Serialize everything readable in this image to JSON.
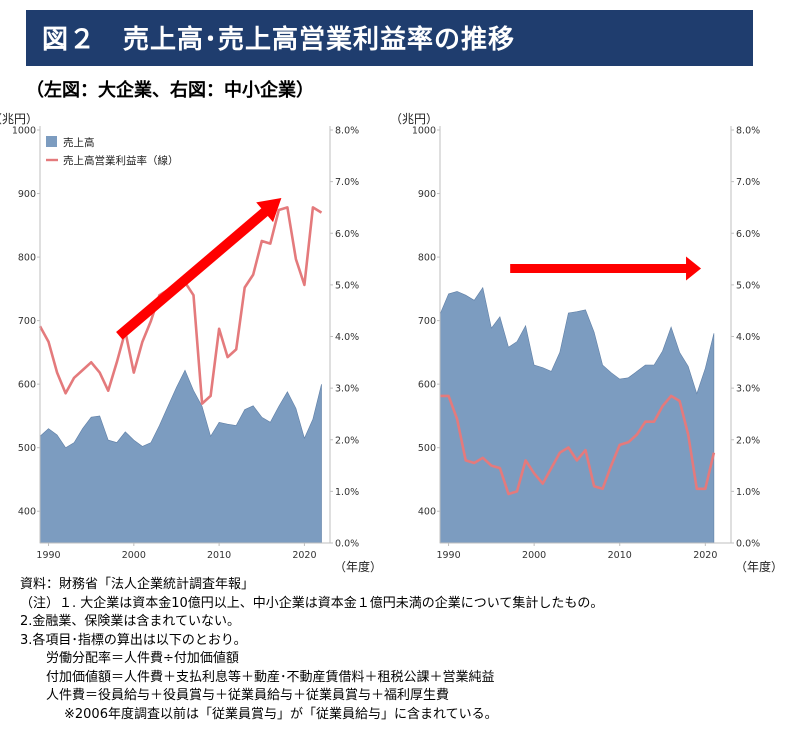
{
  "header": {
    "title": "図２　売上高･売上高営業利益率の推移",
    "subtitle": "（左図：大企業、右図：中小企業）"
  },
  "legend": {
    "sales": "売上高",
    "margin": "売上高営業利益率（線）"
  },
  "colors": {
    "title_bg": "#1f3d6e",
    "area": "#7c9cc0",
    "area_edge": "#5f7fa6",
    "line": "#e47a7c",
    "arrow": "#ff0000"
  },
  "icons": {
    "up_trend": "red-arrow-up-right",
    "flat_trend": "red-arrow-right"
  },
  "chart_data": [
    {
      "type": "area",
      "name": "大企業",
      "y_unit_label": "（兆円）",
      "x_unit_label": "（年度）",
      "ylim": [
        350,
        1000
      ],
      "y_ticks": [
        "400",
        "500",
        "600",
        "700",
        "800",
        "900",
        "1000"
      ],
      "y2lim": [
        0.0,
        8.0
      ],
      "y2_ticks": [
        "0.0%",
        "1.0%",
        "2.0%",
        "3.0%",
        "4.0%",
        "5.0%",
        "6.0%",
        "7.0%",
        "8.0%"
      ],
      "xlim": [
        1989,
        2023
      ],
      "x_ticks": [
        "1990",
        "2000",
        "2010",
        "2020"
      ],
      "x": [
        1989,
        1990,
        1991,
        1992,
        1993,
        1994,
        1995,
        1996,
        1997,
        1998,
        1999,
        2000,
        2001,
        2002,
        2003,
        2004,
        2005,
        2006,
        2007,
        2008,
        2009,
        2010,
        2011,
        2012,
        2013,
        2014,
        2015,
        2016,
        2017,
        2018,
        2019,
        2020,
        2021,
        2022
      ],
      "series": [
        {
          "name": "売上高",
          "kind": "area",
          "axis": "left",
          "values": [
            518,
            530,
            520,
            500,
            508,
            530,
            548,
            550,
            512,
            508,
            525,
            512,
            502,
            508,
            535,
            565,
            595,
            622,
            590,
            565,
            518,
            540,
            537,
            535,
            560,
            566,
            548,
            540,
            565,
            588,
            562,
            515,
            545,
            600
          ]
        },
        {
          "name": "売上高営業利益率",
          "kind": "line",
          "axis": "right",
          "values": [
            4.2,
            3.9,
            3.3,
            2.9,
            3.2,
            3.35,
            3.5,
            3.3,
            2.95,
            3.5,
            4.1,
            3.3,
            3.9,
            4.3,
            4.8,
            4.9,
            5.0,
            5.05,
            4.8,
            2.7,
            2.85,
            4.15,
            3.6,
            3.75,
            4.95,
            5.2,
            5.85,
            5.8,
            6.45,
            6.5,
            5.5,
            5.0,
            6.5,
            6.4
          ]
        }
      ]
    },
    {
      "type": "area",
      "name": "中小企業",
      "y_unit_label": "（兆円）",
      "x_unit_label": "（年度）",
      "ylim": [
        350,
        1000
      ],
      "y_ticks": [
        "400",
        "500",
        "600",
        "700",
        "800",
        "900",
        "1000"
      ],
      "y2lim": [
        0.0,
        8.0
      ],
      "y2_ticks": [
        "0.0%",
        "1.0%",
        "2.0%",
        "3.0%",
        "4.0%",
        "5.0%",
        "6.0%",
        "7.0%",
        "8.0%"
      ],
      "xlim": [
        1989,
        2023
      ],
      "x_ticks": [
        "1990",
        "2000",
        "2010",
        "2020"
      ],
      "x": [
        1989,
        1990,
        1991,
        1992,
        1993,
        1994,
        1995,
        1996,
        1997,
        1998,
        1999,
        2000,
        2001,
        2002,
        2003,
        2004,
        2005,
        2006,
        2007,
        2008,
        2009,
        2010,
        2011,
        2012,
        2013,
        2014,
        2015,
        2016,
        2017,
        2018,
        2019,
        2020,
        2021,
        2022
      ],
      "series": [
        {
          "name": "売上高",
          "kind": "area",
          "axis": "left",
          "values": [
            710,
            742,
            746,
            740,
            732,
            752,
            688,
            706,
            658,
            667,
            692,
            630,
            626,
            620,
            650,
            712,
            714,
            717,
            682,
            630,
            618,
            608,
            610,
            620,
            630,
            630,
            652,
            690,
            650,
            628,
            585,
            625,
            680,
            null
          ]
        },
        {
          "name": "売上高営業利益率",
          "kind": "line",
          "axis": "right",
          "values": [
            2.85,
            2.85,
            2.4,
            1.6,
            1.55,
            1.65,
            1.5,
            1.45,
            0.95,
            1.0,
            1.6,
            1.35,
            1.15,
            1.45,
            1.75,
            1.85,
            1.6,
            1.8,
            1.1,
            1.05,
            1.5,
            1.9,
            1.95,
            2.1,
            2.35,
            2.35,
            2.65,
            2.85,
            2.75,
            2.1,
            1.05,
            1.05,
            1.75,
            null
          ]
        }
      ]
    }
  ],
  "notes": {
    "source": "資料：財務省「法人企業統計調査年報」",
    "note1": "（注）１. 大企業は資本金10億円以上、中小企業は資本金１億円未満の企業について集計したもの。",
    "note2": "2.金融業、保険業は含まれていない。",
    "note3": "3.各項目･指標の算出は以下のとおり。",
    "formula1": "労働分配率＝人件費÷付加価値額",
    "formula2": "付加価値額＝人件費＋支払利息等＋動産･不動産賃借料＋租税公課＋営業純益",
    "formula3": "人件費＝役員給与＋役員賞与＋従業員給与＋従業員賞与＋福利厚生費",
    "formula4": "※2006年度調査以前は「従業員賞与」が「従業員給与」に含まれている。"
  }
}
